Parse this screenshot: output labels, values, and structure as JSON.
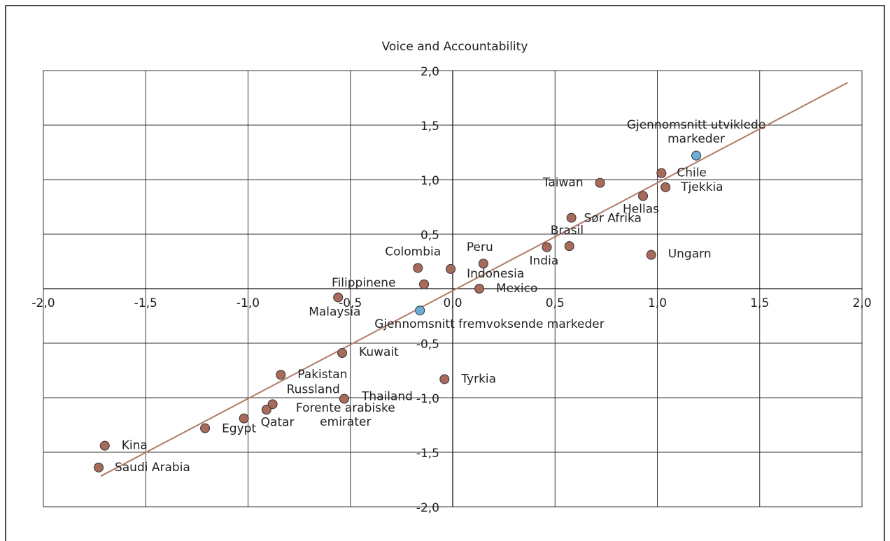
{
  "chart_data": {
    "type": "scatter",
    "title": "Voice and Accountability",
    "xlim": [
      -2,
      2
    ],
    "ylim": [
      -2,
      2
    ],
    "xticks": [
      {
        "value": -2,
        "label": "-2,0"
      },
      {
        "value": -1.5,
        "label": "-1,5"
      },
      {
        "value": -1,
        "label": "-1,0"
      },
      {
        "value": -0.5,
        "label": "-0,5"
      },
      {
        "value": 0,
        "label": "0,0"
      },
      {
        "value": 0.5,
        "label": "0,5"
      },
      {
        "value": 1,
        "label": "1,0"
      },
      {
        "value": 1.5,
        "label": "1,5"
      },
      {
        "value": 2,
        "label": "2,0"
      }
    ],
    "yticks": [
      {
        "value": -2,
        "label": "-2,0"
      },
      {
        "value": -1.5,
        "label": "-1,5"
      },
      {
        "value": -1,
        "label": "-1,0"
      },
      {
        "value": -0.5,
        "label": "-0,5"
      },
      {
        "value": 0.5,
        "label": "0,5"
      },
      {
        "value": 1,
        "label": "1,0"
      },
      {
        "value": 1.5,
        "label": "1,5"
      },
      {
        "value": 2,
        "label": "2,0"
      }
    ],
    "grid": true,
    "trendline": {
      "color": "#b07a68",
      "x": [
        -1.72,
        1.93
      ],
      "y": [
        -1.72,
        1.89
      ]
    },
    "points": [
      {
        "label": "Gjennomsnitt utviklede markeder",
        "x": 1.19,
        "y": 1.22,
        "color": "#6aaed6"
      },
      {
        "label": "Chile",
        "x": 1.02,
        "y": 1.06,
        "color": "#a86a5a"
      },
      {
        "label": "Tjekkia",
        "x": 1.04,
        "y": 0.93,
        "color": "#a86a5a"
      },
      {
        "label": "Taiwan",
        "x": 0.72,
        "y": 0.97,
        "color": "#a86a5a"
      },
      {
        "label": "Hellas",
        "x": 0.93,
        "y": 0.85,
        "color": "#a86a5a"
      },
      {
        "label": "Sør Afrika",
        "x": 0.58,
        "y": 0.65,
        "color": "#a86a5a"
      },
      {
        "label": "Brasil",
        "x": 0.57,
        "y": 0.39,
        "color": "#a86a5a"
      },
      {
        "label": "India",
        "x": 0.46,
        "y": 0.38,
        "color": "#a86a5a"
      },
      {
        "label": "Ungarn",
        "x": 0.97,
        "y": 0.31,
        "color": "#a86a5a"
      },
      {
        "label": "Peru",
        "x": 0.15,
        "y": 0.23,
        "color": "#a86a5a"
      },
      {
        "label": "Colombia",
        "x": -0.17,
        "y": 0.19,
        "color": "#a86a5a"
      },
      {
        "label": "Indonesia",
        "x": -0.01,
        "y": 0.18,
        "color": "#a86a5a"
      },
      {
        "label": "Filippinene",
        "x": -0.14,
        "y": 0.04,
        "color": "#a86a5a"
      },
      {
        "label": "Mexico",
        "x": 0.13,
        "y": 0.0,
        "color": "#a86a5a"
      },
      {
        "label": "Malaysia",
        "x": -0.56,
        "y": -0.08,
        "color": "#a86a5a"
      },
      {
        "label": "Gjennomsnitt fremvoksende markeder",
        "x": -0.16,
        "y": -0.2,
        "color": "#6aaed6"
      },
      {
        "label": "Kuwait",
        "x": -0.54,
        "y": -0.59,
        "color": "#a86a5a"
      },
      {
        "label": "Tyrkia",
        "x": -0.04,
        "y": -0.83,
        "color": "#a86a5a"
      },
      {
        "label": "Pakistan",
        "x": -0.84,
        "y": -0.79,
        "color": "#a86a5a"
      },
      {
        "label": "Thailand",
        "x": -0.53,
        "y": -1.01,
        "color": "#a86a5a"
      },
      {
        "label": "Russland",
        "x": -0.88,
        "y": -1.06,
        "color": "#a86a5a"
      },
      {
        "label": "Forente arabiske emirater",
        "x": -0.91,
        "y": -1.11,
        "color": "#a86a5a"
      },
      {
        "label": "Qatar",
        "x": -1.02,
        "y": -1.19,
        "color": "#a86a5a"
      },
      {
        "label": "Egypt",
        "x": -1.21,
        "y": -1.28,
        "color": "#a86a5a"
      },
      {
        "label": "Kina",
        "x": -1.7,
        "y": -1.44,
        "color": "#a86a5a"
      },
      {
        "label": "Saudi Arabia",
        "x": -1.73,
        "y": -1.64,
        "color": "#a86a5a"
      }
    ]
  }
}
